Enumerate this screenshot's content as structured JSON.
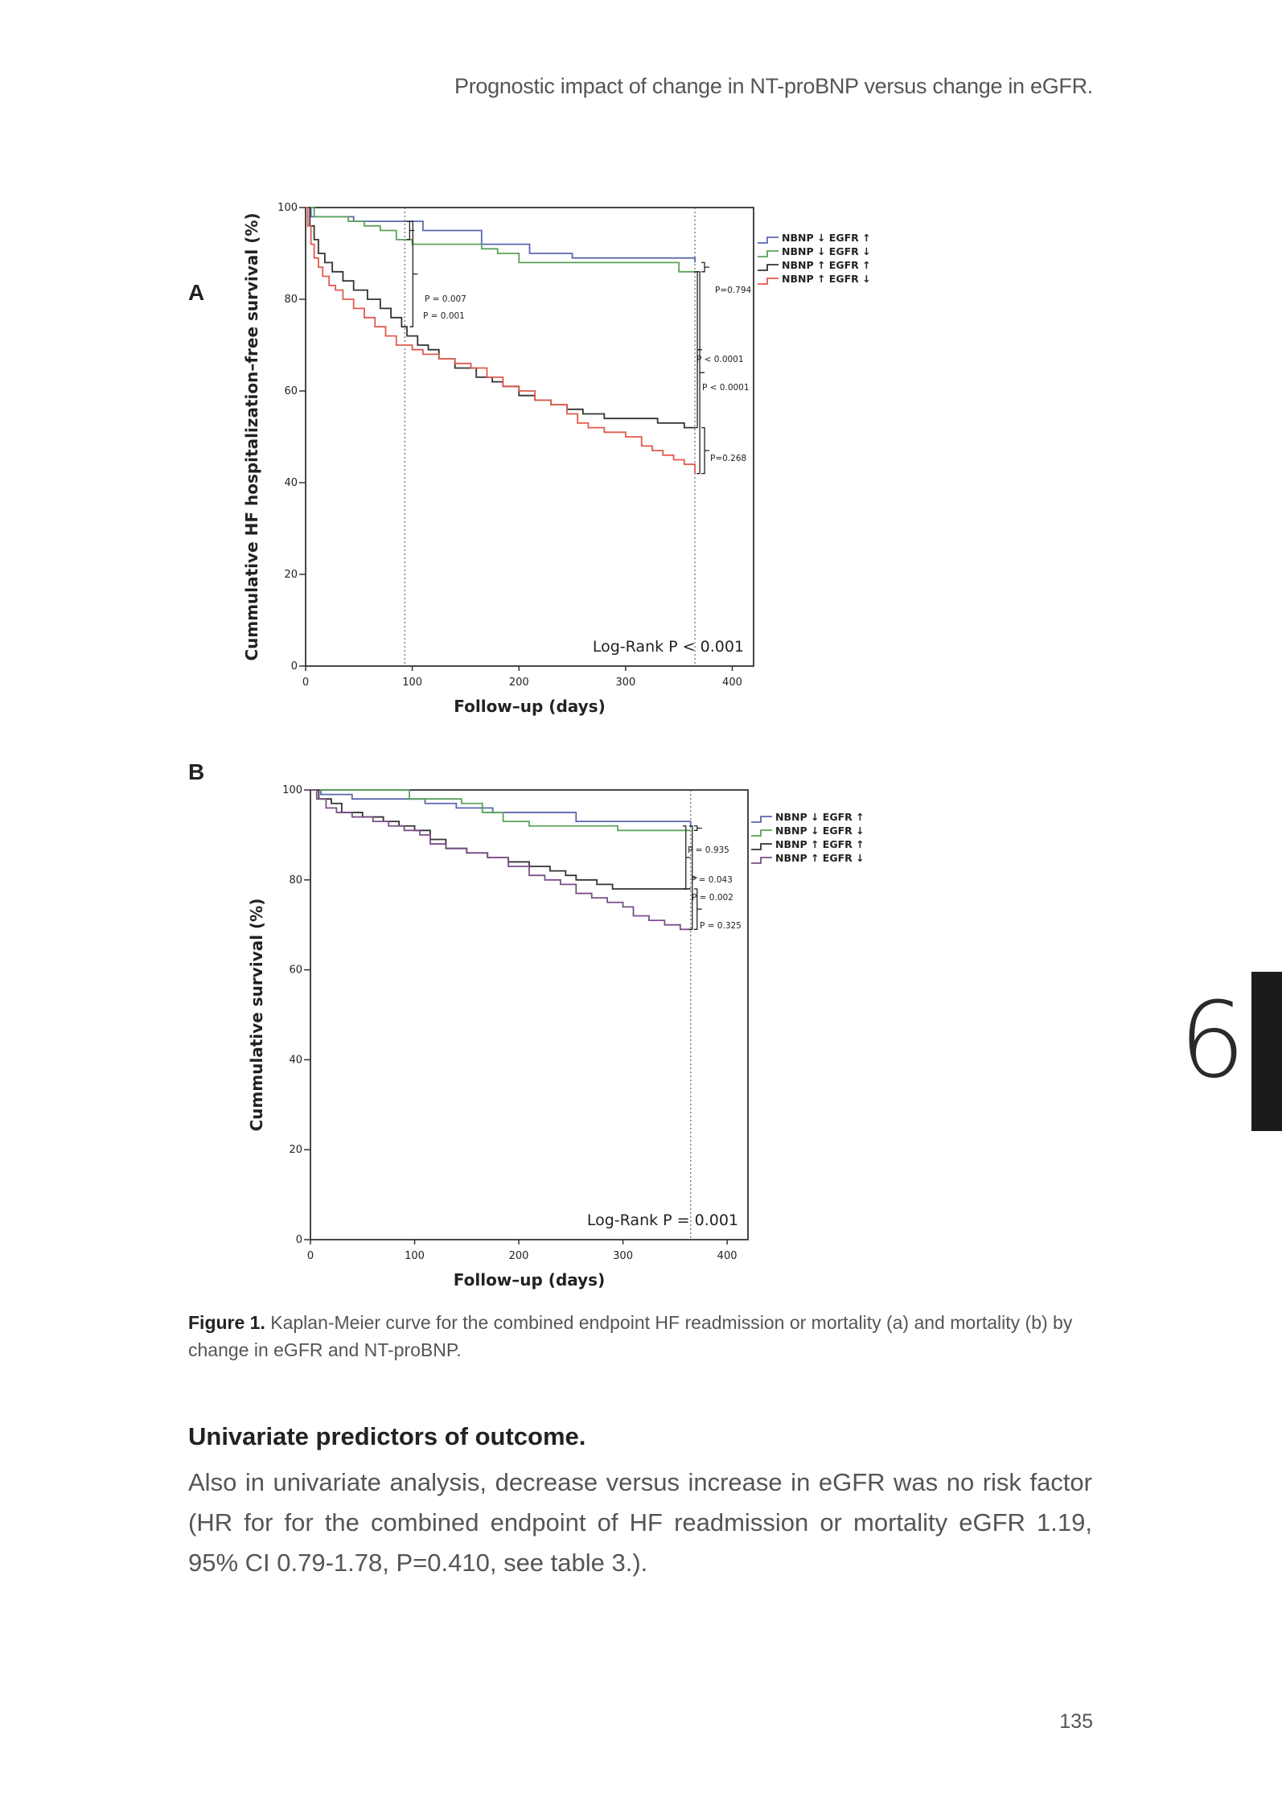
{
  "running_head": "Prognostic impact of change in NT-proBNP versus change in eGFR.",
  "panels": {
    "a_label": "A",
    "b_label": "B"
  },
  "chart_data": [
    {
      "type": "line",
      "panel": "A",
      "title": "",
      "xlabel": "Follow–up (days)",
      "ylabel": "Cummulative HF hospitalization–free survival (%)",
      "xlim": [
        0,
        420
      ],
      "ylim": [
        0,
        100
      ],
      "x_ticks": [
        "0",
        "100",
        "200",
        "300",
        "400"
      ],
      "y_ticks": [
        "0",
        "20",
        "40",
        "60",
        "80",
        "100"
      ],
      "reference_lines_x": [
        93,
        365
      ],
      "annotation": "Log-Rank P < 0.001",
      "series": [
        {
          "name": "NBNP ↓ EGFR ↑",
          "color": "#5a68b0",
          "points": [
            [
              0,
              100
            ],
            [
              5,
              98
            ],
            [
              40,
              98
            ],
            [
              45,
              97
            ],
            [
              105,
              97
            ],
            [
              110,
              95
            ],
            [
              160,
              95
            ],
            [
              165,
              92
            ],
            [
              200,
              92
            ],
            [
              210,
              90
            ],
            [
              245,
              90
            ],
            [
              250,
              89
            ],
            [
              365,
              89
            ],
            [
              365,
              88
            ]
          ]
        },
        {
          "name": "NBNP ↓ EGFR ↓",
          "color": "#5aa35a",
          "points": [
            [
              0,
              100
            ],
            [
              8,
              98
            ],
            [
              35,
              98
            ],
            [
              40,
              97
            ],
            [
              50,
              97
            ],
            [
              55,
              96
            ],
            [
              70,
              95
            ],
            [
              85,
              93
            ],
            [
              100,
              92
            ],
            [
              160,
              92
            ],
            [
              165,
              91
            ],
            [
              175,
              91
            ],
            [
              180,
              90
            ],
            [
              195,
              90
            ],
            [
              200,
              88
            ],
            [
              345,
              88
            ],
            [
              350,
              86
            ],
            [
              365,
              86
            ]
          ]
        },
        {
          "name": "NBNP ↑ EGFR ↑",
          "color": "#333333",
          "points": [
            [
              0,
              100
            ],
            [
              4,
              96
            ],
            [
              8,
              93
            ],
            [
              12,
              90
            ],
            [
              18,
              88
            ],
            [
              25,
              86
            ],
            [
              35,
              84
            ],
            [
              45,
              82
            ],
            [
              58,
              80
            ],
            [
              70,
              78
            ],
            [
              80,
              76
            ],
            [
              90,
              74
            ],
            [
              95,
              72
            ],
            [
              105,
              70
            ],
            [
              115,
              69
            ],
            [
              125,
              67
            ],
            [
              140,
              65
            ],
            [
              160,
              63
            ],
            [
              175,
              62
            ],
            [
              185,
              61
            ],
            [
              200,
              59
            ],
            [
              215,
              58
            ],
            [
              230,
              57
            ],
            [
              245,
              56
            ],
            [
              260,
              55
            ],
            [
              280,
              54
            ],
            [
              300,
              54
            ],
            [
              330,
              53
            ],
            [
              345,
              53
            ],
            [
              355,
              52
            ],
            [
              365,
              52
            ]
          ]
        },
        {
          "name": "NBNP ↑ EGFR ↓",
          "color": "#e05a4e",
          "points": [
            [
              0,
              100
            ],
            [
              2,
              96
            ],
            [
              5,
              92
            ],
            [
              8,
              89
            ],
            [
              12,
              87
            ],
            [
              16,
              85
            ],
            [
              22,
              83
            ],
            [
              28,
              82
            ],
            [
              35,
              80
            ],
            [
              45,
              78
            ],
            [
              55,
              76
            ],
            [
              65,
              74
            ],
            [
              75,
              72
            ],
            [
              85,
              70
            ],
            [
              100,
              69
            ],
            [
              110,
              68
            ],
            [
              125,
              67
            ],
            [
              140,
              66
            ],
            [
              155,
              65
            ],
            [
              170,
              63
            ],
            [
              185,
              61
            ],
            [
              200,
              60
            ],
            [
              215,
              58
            ],
            [
              230,
              57
            ],
            [
              245,
              55
            ],
            [
              255,
              53
            ],
            [
              265,
              52
            ],
            [
              280,
              51
            ],
            [
              300,
              50
            ],
            [
              315,
              48
            ],
            [
              325,
              47
            ],
            [
              335,
              46
            ],
            [
              345,
              45
            ],
            [
              355,
              44
            ],
            [
              365,
              42
            ]
          ]
        }
      ],
      "p_values": [
        {
          "label": "P = 0.007"
        },
        {
          "label": "P = 0.001"
        },
        {
          "label": "P=0.794"
        },
        {
          "label": "P < 0.0001"
        },
        {
          "label": "P < 0.0001"
        },
        {
          "label": "P=0.268"
        }
      ]
    },
    {
      "type": "line",
      "panel": "B",
      "title": "",
      "xlabel": "Follow–up (days)",
      "ylabel": "Cummulative survival (%)",
      "xlim": [
        0,
        420
      ],
      "ylim": [
        0,
        100
      ],
      "x_ticks": [
        "0",
        "100",
        "200",
        "300",
        "400"
      ],
      "y_ticks": [
        "0",
        "20",
        "40",
        "60",
        "80",
        "100"
      ],
      "reference_lines_x": [
        365
      ],
      "annotation": "Log-Rank P = 0.001",
      "series": [
        {
          "name": "NBNP ↓ EGFR ↑",
          "color": "#5a68b0",
          "points": [
            [
              0,
              100
            ],
            [
              10,
              99
            ],
            [
              35,
              99
            ],
            [
              40,
              98
            ],
            [
              100,
              98
            ],
            [
              110,
              97
            ],
            [
              135,
              97
            ],
            [
              140,
              96
            ],
            [
              170,
              96
            ],
            [
              175,
              95
            ],
            [
              250,
              95
            ],
            [
              255,
              93
            ],
            [
              365,
              93
            ],
            [
              365,
              92
            ]
          ]
        },
        {
          "name": "NBNP ↓ EGFR ↓",
          "color": "#5aa35a",
          "points": [
            [
              0,
              100
            ],
            [
              90,
              100
            ],
            [
              95,
              98
            ],
            [
              140,
              98
            ],
            [
              145,
              97
            ],
            [
              160,
              97
            ],
            [
              165,
              95
            ],
            [
              180,
              95
            ],
            [
              185,
              93
            ],
            [
              205,
              93
            ],
            [
              210,
              92
            ],
            [
              290,
              92
            ],
            [
              295,
              91
            ],
            [
              365,
              91
            ]
          ]
        },
        {
          "name": "NBNP ↑ EGFR ↑",
          "color": "#333333",
          "points": [
            [
              0,
              100
            ],
            [
              8,
              98
            ],
            [
              20,
              97
            ],
            [
              30,
              95
            ],
            [
              50,
              94
            ],
            [
              70,
              93
            ],
            [
              85,
              92
            ],
            [
              100,
              91
            ],
            [
              115,
              89
            ],
            [
              130,
              87
            ],
            [
              150,
              86
            ],
            [
              170,
              85
            ],
            [
              190,
              84
            ],
            [
              210,
              83
            ],
            [
              230,
              82
            ],
            [
              245,
              81
            ],
            [
              255,
              80
            ],
            [
              275,
              79
            ],
            [
              290,
              78
            ],
            [
              365,
              78
            ]
          ]
        },
        {
          "name": "NBNP ↑ EGFR ↓",
          "color": "#7a4e8a",
          "points": [
            [
              0,
              100
            ],
            [
              6,
              98
            ],
            [
              15,
              96
            ],
            [
              25,
              95
            ],
            [
              40,
              94
            ],
            [
              60,
              93
            ],
            [
              75,
              92
            ],
            [
              90,
              91
            ],
            [
              105,
              90
            ],
            [
              115,
              88
            ],
            [
              130,
              87
            ],
            [
              150,
              86
            ],
            [
              170,
              85
            ],
            [
              190,
              83
            ],
            [
              210,
              81
            ],
            [
              225,
              80
            ],
            [
              240,
              79
            ],
            [
              255,
              77
            ],
            [
              270,
              76
            ],
            [
              285,
              75
            ],
            [
              300,
              74
            ],
            [
              310,
              72
            ],
            [
              325,
              71
            ],
            [
              340,
              70
            ],
            [
              355,
              69
            ],
            [
              365,
              69
            ]
          ]
        }
      ],
      "p_values": [
        {
          "label": "P = 0.935"
        },
        {
          "label": "P = 0.043"
        },
        {
          "label": "P = 0.002"
        },
        {
          "label": "P = 0.325"
        }
      ]
    }
  ],
  "figure_caption": {
    "label": "Figure 1.",
    "text": " Kaplan-Meier curve for the combined endpoint HF readmission or mortality (a) and mortality (b) by change in eGFR and NT-proBNP."
  },
  "section": {
    "heading": "Univariate predictors of outcome.",
    "body": "Also in univariate analysis, decrease versus increase in eGFR was no risk factor (HR for for the combined endpoint of HF readmission or mortality eGFR 1.19, 95% CI 0.79-1.78, P=0.410, see table 3.)."
  },
  "chapter_number": "6",
  "page_number": "135"
}
